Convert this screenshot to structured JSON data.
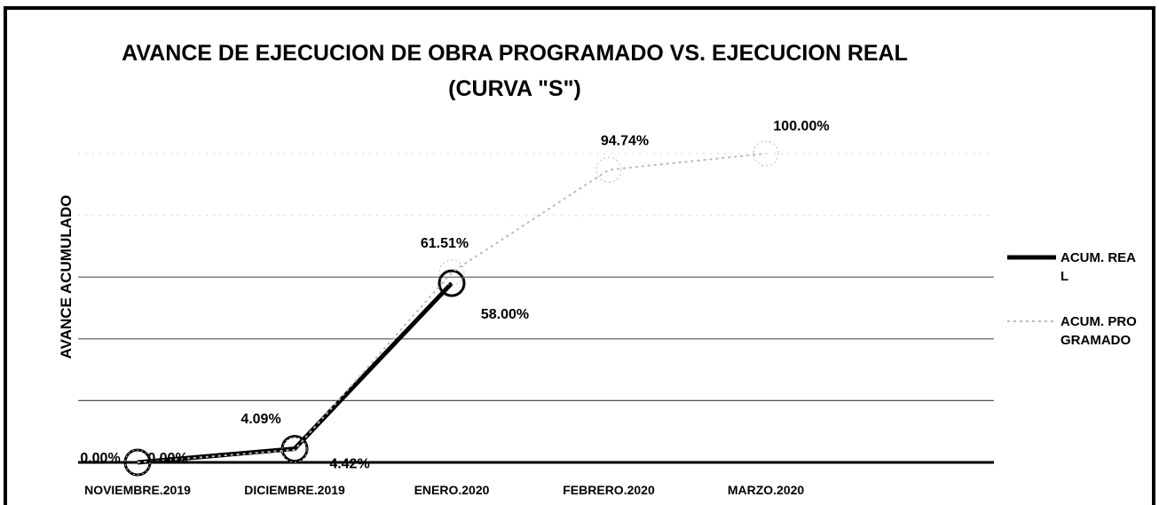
{
  "chart_data": {
    "type": "line",
    "title": [
      "AVANCE DE EJECUCION DE OBRA PROGRAMADO VS. EJECUCION REAL",
      "(CURVA \"S\")"
    ],
    "y_axis_label": "AVANCE ACUMULADO",
    "categories": [
      "NOVIEMBRE.2019",
      "DICIEMBRE.2019",
      "ENERO.2020",
      "FEBRERO.2020",
      "MARZO.2020"
    ],
    "series": [
      {
        "name": "ACUM. REAL",
        "color": "#000000",
        "values": [
          0.0,
          4.42,
          58.0,
          null,
          null
        ],
        "value_labels": [
          "0.00%",
          "4.42%",
          "58.00%",
          null,
          null
        ]
      },
      {
        "name": "ACUM. PROGRAMADO",
        "color": "#bbbbbb",
        "values": [
          0.0,
          4.09,
          61.51,
          94.74,
          100.0
        ],
        "value_labels": [
          "0.00%",
          "4.09%",
          "61.51%",
          "94.74%",
          "100.00%"
        ]
      }
    ],
    "ylim": [
      0,
      100
    ],
    "yticks": [
      0,
      20,
      40,
      60,
      80,
      100
    ],
    "show_ytick_labels": false,
    "grid": true,
    "legend": "right"
  }
}
